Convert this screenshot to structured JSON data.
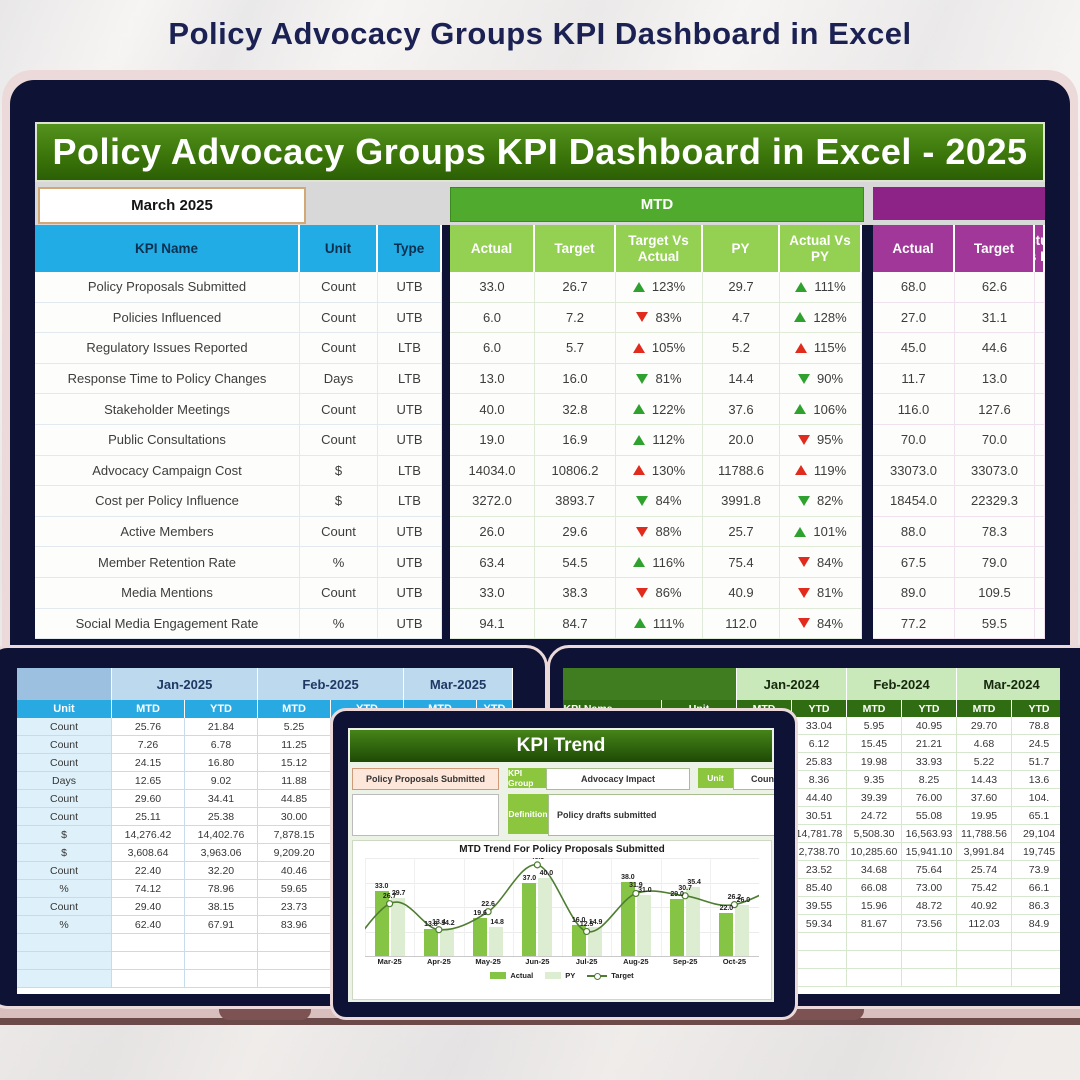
{
  "page_title": "Policy Advocacy Groups KPI Dashboard in Excel",
  "colors": {
    "accent_green": "#4faa2d",
    "light_green": "#94d052",
    "cyan": "#21ace6",
    "purple": "#8e2387",
    "arrow_green": "#2ea12e",
    "arrow_red": "#e02b1d",
    "bezel_navy": "#0e1234"
  },
  "main_dashboard": {
    "banner_title": "Policy Advocacy Groups KPI Dashboard in Excel - 2025",
    "month_selector": "March 2025",
    "mtd_band_label": "MTD",
    "kpi_headers": [
      "KPI Name",
      "Unit",
      "Type"
    ],
    "mtd_headers": [
      "Actual",
      "Target",
      "Target Vs Actual",
      "PY",
      "Actual Vs PY"
    ],
    "ytd_headers": [
      "Actual",
      "Target",
      "Actual Vs PY"
    ],
    "rows": [
      {
        "name": "Policy Proposals Submitted",
        "unit": "Count",
        "type": "UTB",
        "mtd_actual": "33.0",
        "mtd_target": "26.7",
        "target_vs_actual": {
          "dir": "up",
          "color": "green",
          "pct": "123%"
        },
        "py": "29.7",
        "actual_vs_py": {
          "dir": "up",
          "color": "green",
          "pct": "111%"
        },
        "ytd_actual": "68.0",
        "ytd_target": "62.6"
      },
      {
        "name": "Policies Influenced",
        "unit": "Count",
        "type": "UTB",
        "mtd_actual": "6.0",
        "mtd_target": "7.2",
        "target_vs_actual": {
          "dir": "down",
          "color": "red",
          "pct": "83%"
        },
        "py": "4.7",
        "actual_vs_py": {
          "dir": "up",
          "color": "green",
          "pct": "128%"
        },
        "ytd_actual": "27.0",
        "ytd_target": "31.1"
      },
      {
        "name": "Regulatory Issues Reported",
        "unit": "Count",
        "type": "LTB",
        "mtd_actual": "6.0",
        "mtd_target": "5.7",
        "target_vs_actual": {
          "dir": "up",
          "color": "red",
          "pct": "105%"
        },
        "py": "5.2",
        "actual_vs_py": {
          "dir": "up",
          "color": "red",
          "pct": "115%"
        },
        "ytd_actual": "45.0",
        "ytd_target": "44.6"
      },
      {
        "name": "Response Time to Policy Changes",
        "unit": "Days",
        "type": "LTB",
        "mtd_actual": "13.0",
        "mtd_target": "16.0",
        "target_vs_actual": {
          "dir": "down",
          "color": "green",
          "pct": "81%"
        },
        "py": "14.4",
        "actual_vs_py": {
          "dir": "down",
          "color": "green",
          "pct": "90%"
        },
        "ytd_actual": "11.7",
        "ytd_target": "13.0"
      },
      {
        "name": "Stakeholder Meetings",
        "unit": "Count",
        "type": "UTB",
        "mtd_actual": "40.0",
        "mtd_target": "32.8",
        "target_vs_actual": {
          "dir": "up",
          "color": "green",
          "pct": "122%"
        },
        "py": "37.6",
        "actual_vs_py": {
          "dir": "up",
          "color": "green",
          "pct": "106%"
        },
        "ytd_actual": "116.0",
        "ytd_target": "127.6"
      },
      {
        "name": "Public Consultations",
        "unit": "Count",
        "type": "UTB",
        "mtd_actual": "19.0",
        "mtd_target": "16.9",
        "target_vs_actual": {
          "dir": "up",
          "color": "green",
          "pct": "112%"
        },
        "py": "20.0",
        "actual_vs_py": {
          "dir": "down",
          "color": "red",
          "pct": "95%"
        },
        "ytd_actual": "70.0",
        "ytd_target": "70.0"
      },
      {
        "name": "Advocacy Campaign Cost",
        "unit": "$",
        "type": "LTB",
        "mtd_actual": "14034.0",
        "mtd_target": "10806.2",
        "target_vs_actual": {
          "dir": "up",
          "color": "red",
          "pct": "130%"
        },
        "py": "11788.6",
        "actual_vs_py": {
          "dir": "up",
          "color": "red",
          "pct": "119%"
        },
        "ytd_actual": "33073.0",
        "ytd_target": "33073.0"
      },
      {
        "name": "Cost per Policy Influence",
        "unit": "$",
        "type": "LTB",
        "mtd_actual": "3272.0",
        "mtd_target": "3893.7",
        "target_vs_actual": {
          "dir": "down",
          "color": "green",
          "pct": "84%"
        },
        "py": "3991.8",
        "actual_vs_py": {
          "dir": "down",
          "color": "green",
          "pct": "82%"
        },
        "ytd_actual": "18454.0",
        "ytd_target": "22329.3"
      },
      {
        "name": "Active Members",
        "unit": "Count",
        "type": "UTB",
        "mtd_actual": "26.0",
        "mtd_target": "29.6",
        "target_vs_actual": {
          "dir": "down",
          "color": "red",
          "pct": "88%"
        },
        "py": "25.7",
        "actual_vs_py": {
          "dir": "up",
          "color": "green",
          "pct": "101%"
        },
        "ytd_actual": "88.0",
        "ytd_target": "78.3"
      },
      {
        "name": "Member Retention Rate",
        "unit": "%",
        "type": "UTB",
        "mtd_actual": "63.4",
        "mtd_target": "54.5",
        "target_vs_actual": {
          "dir": "up",
          "color": "green",
          "pct": "116%"
        },
        "py": "75.4",
        "actual_vs_py": {
          "dir": "down",
          "color": "red",
          "pct": "84%"
        },
        "ytd_actual": "67.5",
        "ytd_target": "79.0"
      },
      {
        "name": "Media Mentions",
        "unit": "Count",
        "type": "UTB",
        "mtd_actual": "33.0",
        "mtd_target": "38.3",
        "target_vs_actual": {
          "dir": "down",
          "color": "red",
          "pct": "86%"
        },
        "py": "40.9",
        "actual_vs_py": {
          "dir": "down",
          "color": "red",
          "pct": "81%"
        },
        "ytd_actual": "89.0",
        "ytd_target": "109.5"
      },
      {
        "name": "Social Media Engagement Rate",
        "unit": "%",
        "type": "UTB",
        "mtd_actual": "94.1",
        "mtd_target": "84.7",
        "target_vs_actual": {
          "dir": "up",
          "color": "green",
          "pct": "111%"
        },
        "py": "112.0",
        "actual_vs_py": {
          "dir": "down",
          "color": "red",
          "pct": "84%"
        },
        "ytd_actual": "77.2",
        "ytd_target": "59.5"
      }
    ]
  },
  "monthly_2025_table": {
    "months": [
      "Jan-2025",
      "Feb-2025",
      "Mar-2025"
    ],
    "sub_headers": [
      "Unit",
      "MTD",
      "YTD",
      "MTD",
      "YTD",
      "MTD",
      "YTD"
    ],
    "rows": [
      [
        "Count",
        "25.76",
        "21.84",
        "5.25",
        "",
        "",
        ""
      ],
      [
        "Count",
        "7.26",
        "6.78",
        "11.25",
        "",
        "",
        ""
      ],
      [
        "Count",
        "24.15",
        "16.80",
        "15.12",
        "",
        "",
        ""
      ],
      [
        "Days",
        "12.65",
        "9.02",
        "11.88",
        "",
        "",
        ""
      ],
      [
        "Count",
        "29.60",
        "34.41",
        "44.85",
        "",
        "",
        ""
      ],
      [
        "Count",
        "25.11",
        "25.38",
        "30.00",
        "",
        "",
        ""
      ],
      [
        "$",
        "14,276.42",
        "14,402.76",
        "7,878.15",
        "",
        "",
        ""
      ],
      [
        "$",
        "3,608.64",
        "3,963.06",
        "9,209.20",
        "",
        "",
        ""
      ],
      [
        "Count",
        "22.40",
        "32.20",
        "40.46",
        "",
        "",
        ""
      ],
      [
        "%",
        "74.12",
        "78.96",
        "59.65",
        "",
        "",
        ""
      ],
      [
        "Count",
        "29.40",
        "38.15",
        "23.73",
        "",
        "",
        ""
      ],
      [
        "%",
        "62.40",
        "67.91",
        "83.96",
        "",
        "",
        ""
      ]
    ]
  },
  "monthly_2024_table": {
    "name_header": "KPI Name",
    "unit_header": "Unit",
    "months": [
      "Jan-2024",
      "Feb-2024",
      "Mar-2024"
    ],
    "sub_headers": [
      "MTD",
      "YTD",
      "MTD",
      "YTD",
      "MTD",
      "YTD"
    ],
    "rows": [
      [
        "",
        "",
        "",
        "33.04",
        "5.95",
        "40.95",
        "29.70",
        "78.8"
      ],
      [
        "",
        "",
        "",
        "6.12",
        "15.45",
        "21.21",
        "4.68",
        "24.5"
      ],
      [
        "",
        "",
        "",
        "25.83",
        "19.98",
        "33.93",
        "5.22",
        "51.7"
      ],
      [
        "",
        "",
        "",
        "8.36",
        "9.35",
        "8.25",
        "14.43",
        "13.6"
      ],
      [
        "",
        "",
        "",
        "44.40",
        "39.39",
        "76.00",
        "37.60",
        "104."
      ],
      [
        "",
        "",
        "",
        "30.51",
        "24.72",
        "55.08",
        "19.95",
        "65.1"
      ],
      [
        "",
        "",
        "",
        "14,781.78",
        "5,508.30",
        "16,563.93",
        "11,788.56",
        "29,104"
      ],
      [
        "",
        "",
        "",
        "2,738.70",
        "10,285.60",
        "15,941.10",
        "3,991.84",
        "19,745"
      ],
      [
        "",
        "",
        "",
        "23.52",
        "34.68",
        "75.64",
        "25.74",
        "73.9"
      ],
      [
        "",
        "",
        "",
        "85.40",
        "66.08",
        "73.00",
        "75.42",
        "66.1"
      ],
      [
        "",
        "",
        "",
        "39.55",
        "15.96",
        "48.72",
        "40.92",
        "86.3"
      ],
      [
        "",
        "",
        "",
        "59.34",
        "81.67",
        "73.56",
        "112.03",
        "84.9"
      ]
    ]
  },
  "kpi_trend": {
    "title": "KPI Trend",
    "kpi_name_value": "Policy Proposals Submitted",
    "kpi_group_label": "KPI Group",
    "kpi_group_value": "Advocacy Impact",
    "unit_label": "Unit",
    "unit_value": "Count",
    "definition_label": "Definition",
    "definition_value": "Policy drafts submitted",
    "legend": [
      "Actual",
      "PY",
      "Target"
    ]
  },
  "chart_data": {
    "type": "combo",
    "title": "MTD Trend For Policy Proposals Submitted",
    "categories": [
      "Mar-25",
      "Apr-25",
      "May-25",
      "Jun-25",
      "Jul-25",
      "Aug-25",
      "Sep-25",
      "Oct-25"
    ],
    "series": [
      {
        "name": "Actual",
        "type": "bar",
        "values": [
          33.0,
          13.8,
          19.6,
          37.0,
          16.0,
          38.0,
          29.0,
          22.0
        ]
      },
      {
        "name": "PY",
        "type": "bar",
        "values": [
          29.7,
          14.2,
          14.8,
          40.0,
          14.9,
          31.0,
          35.4,
          26.0
        ]
      },
      {
        "name": "Target",
        "type": "line",
        "values": [
          26.7,
          13.4,
          22.6,
          46.5,
          12.5,
          31.9,
          30.7,
          26.2
        ]
      }
    ],
    "ylim": [
      0,
      50
    ],
    "grid": true,
    "legend_position": "bottom"
  }
}
